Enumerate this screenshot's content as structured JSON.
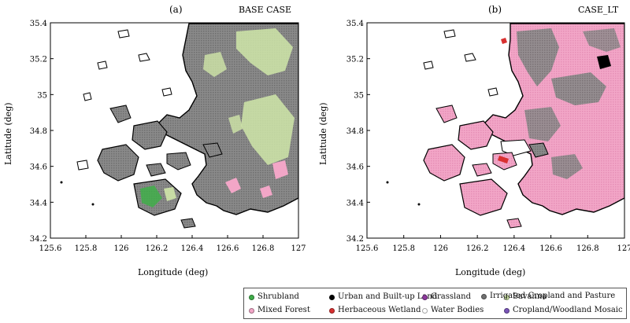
{
  "panels": [
    {
      "label": "(a)",
      "title": "BASE CASE",
      "xlabel": "Longitude (deg)",
      "ylabel": "Latitude (deg)",
      "xticks": [
        "125.6",
        "125.8",
        "126",
        "126.2",
        "126.4",
        "126.6",
        "126.8",
        "127"
      ],
      "yticks": [
        "35.4",
        "35.2",
        "35",
        "34.8",
        "34.6",
        "34.4",
        "34.2"
      ],
      "dominant_land_use": "Irrigated Cropland and Pasture",
      "secondary_land_use": [
        "Savanna",
        "Mixed Forest",
        "Shrubland",
        "Grassland"
      ]
    },
    {
      "label": "(b)",
      "title": "CASE_LT",
      "xlabel": "Longitude (deg)",
      "ylabel": "Latitude (deg)",
      "xticks": [
        "125.6",
        "125.8",
        "126",
        "126.2",
        "126.4",
        "126.6",
        "126.8",
        "127"
      ],
      "yticks": [
        "35.4",
        "35.2",
        "35",
        "34.8",
        "34.6",
        "34.4",
        "34.2"
      ],
      "dominant_land_use": "Mixed Forest",
      "secondary_land_use": [
        "Irrigated Cropland and Pasture",
        "Urban and Built-up Land",
        "Herbaceous Wetland"
      ]
    }
  ],
  "extent": {
    "lon": [
      125.6,
      127
    ],
    "lat": [
      34.2,
      35.4
    ]
  },
  "legend": [
    {
      "label": "Shrubland",
      "color": "#3fae49"
    },
    {
      "label": "Urban and Built-up Land",
      "color": "#000000"
    },
    {
      "label": "Grassland",
      "color": "#8e3a9e"
    },
    {
      "label": "Savanna",
      "color": "#cfe6a8"
    },
    {
      "label": "Irrigated Cropland and Pasture",
      "color": "#707070"
    },
    {
      "label": "Mixed Forest",
      "color": "#f2a6c7"
    },
    {
      "label": "Herbaceous Wetland",
      "color": "#d83030"
    },
    {
      "label": "Water Bodies",
      "color": "#ffffff"
    },
    {
      "label": "Cropland/Woodland Mosaic",
      "color": "#7a55b8"
    }
  ]
}
